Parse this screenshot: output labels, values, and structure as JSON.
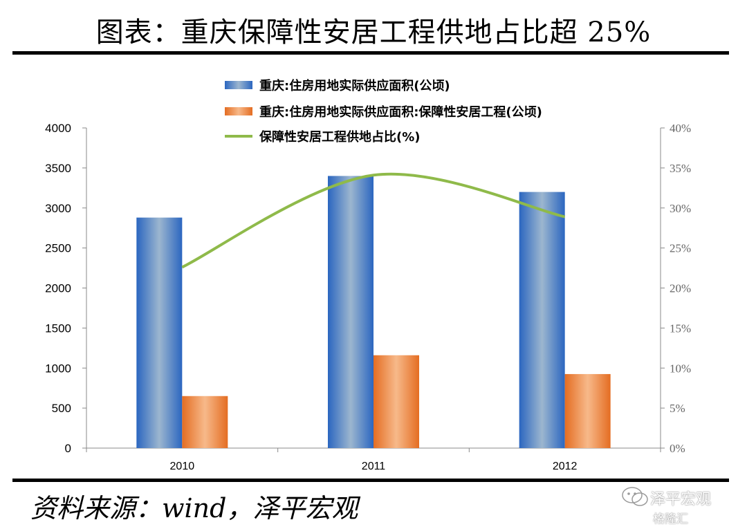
{
  "title": "图表：重庆保障性安居工程供地占比超 25%",
  "source": "资料来源：wind，泽平宏观",
  "watermark": {
    "text": "泽平宏观",
    "brand": "格隆汇"
  },
  "colors": {
    "bar_blue": "#2f6fc4",
    "bar_orange": "#e9782e",
    "line_green": "#8fba4a",
    "axis": "#888888",
    "rule": "#000000"
  },
  "chart_data": {
    "type": "bar",
    "categories": [
      "2010",
      "2011",
      "2012"
    ],
    "series": [
      {
        "name": "重庆:住房用地实际供应面积(公顷)",
        "kind": "bar",
        "axis": "left",
        "values": [
          2880,
          3400,
          3200
        ]
      },
      {
        "name": "重庆:住房用地实际供应面积:保障性安居工程(公顷)",
        "kind": "bar",
        "axis": "left",
        "values": [
          650,
          1160,
          925
        ]
      },
      {
        "name": "保障性安居工程供地占比(%)",
        "kind": "line",
        "axis": "right",
        "values": [
          22.6,
          34.1,
          28.9
        ]
      }
    ],
    "y_left": {
      "min": 0,
      "max": 4000,
      "ticks": [
        "0",
        "500",
        "1000",
        "1500",
        "2000",
        "2500",
        "3000",
        "3500",
        "4000"
      ]
    },
    "y_right": {
      "min": 0,
      "max": 40,
      "ticks": [
        "0%",
        "5%",
        "10%",
        "15%",
        "20%",
        "25%",
        "30%",
        "35%",
        "40%"
      ]
    },
    "legend_position": "top-center",
    "grid": false
  }
}
